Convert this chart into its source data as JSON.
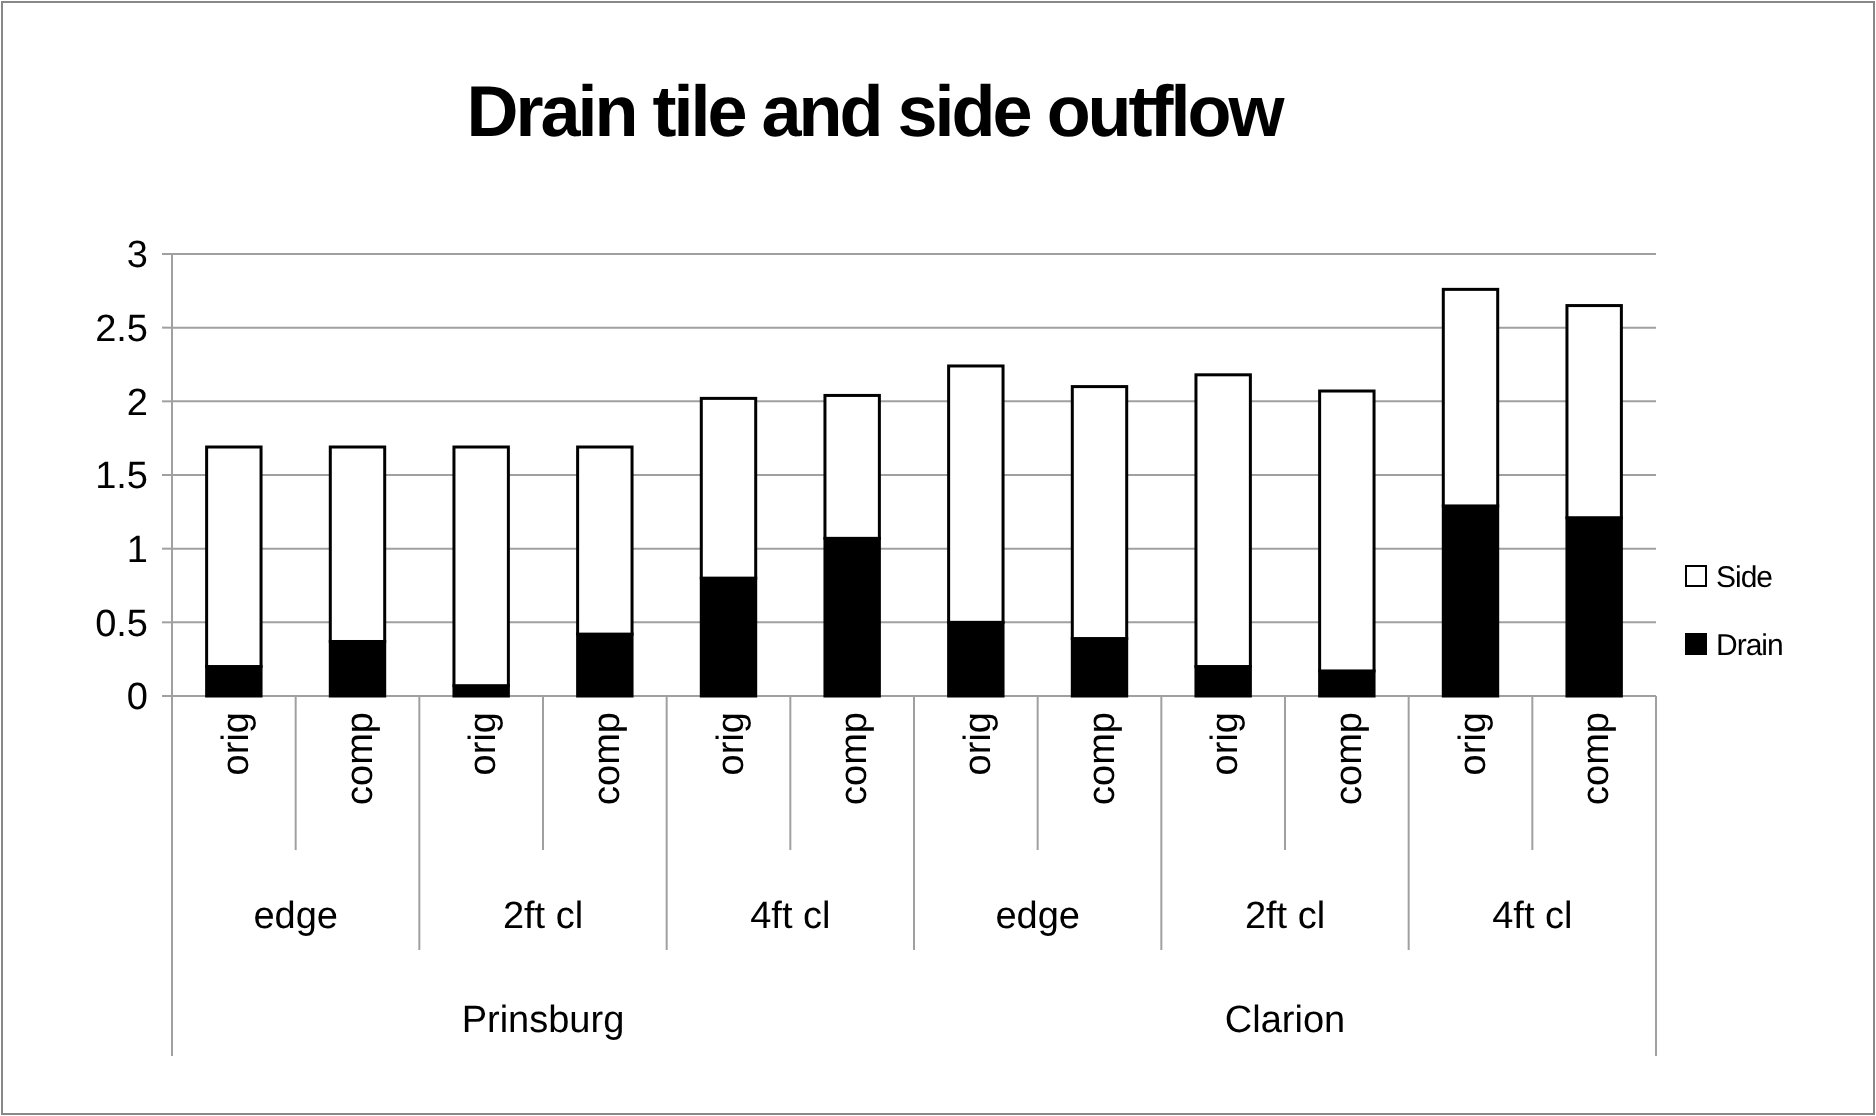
{
  "chart_data": {
    "type": "bar",
    "title": "Drain tile and side outflow",
    "stacked": true,
    "categories": [
      "orig",
      "comp",
      "orig",
      "comp",
      "orig",
      "comp",
      "orig",
      "comp",
      "orig",
      "comp",
      "orig",
      "comp"
    ],
    "series": [
      {
        "name": "Drain",
        "color": "#000000",
        "values": [
          0.2,
          0.37,
          0.07,
          0.42,
          0.8,
          1.07,
          0.5,
          0.39,
          0.2,
          0.17,
          1.29,
          1.21
        ]
      },
      {
        "name": "Side",
        "color": "#ffffff",
        "values": [
          1.49,
          1.32,
          1.62,
          1.27,
          1.22,
          0.97,
          1.74,
          1.71,
          1.98,
          1.9,
          1.47,
          1.44
        ]
      }
    ],
    "annotations": [
      "edge",
      "2ft cl",
      "4ft cl",
      "edge",
      "2ft cl",
      "4ft cl",
      "Prinsburg",
      "Clarion"
    ],
    "ylim": [
      0,
      3
    ],
    "yticks": [
      0,
      0.5,
      1,
      1.5,
      2,
      2.5,
      3
    ],
    "grid": "y",
    "legend": "right"
  }
}
